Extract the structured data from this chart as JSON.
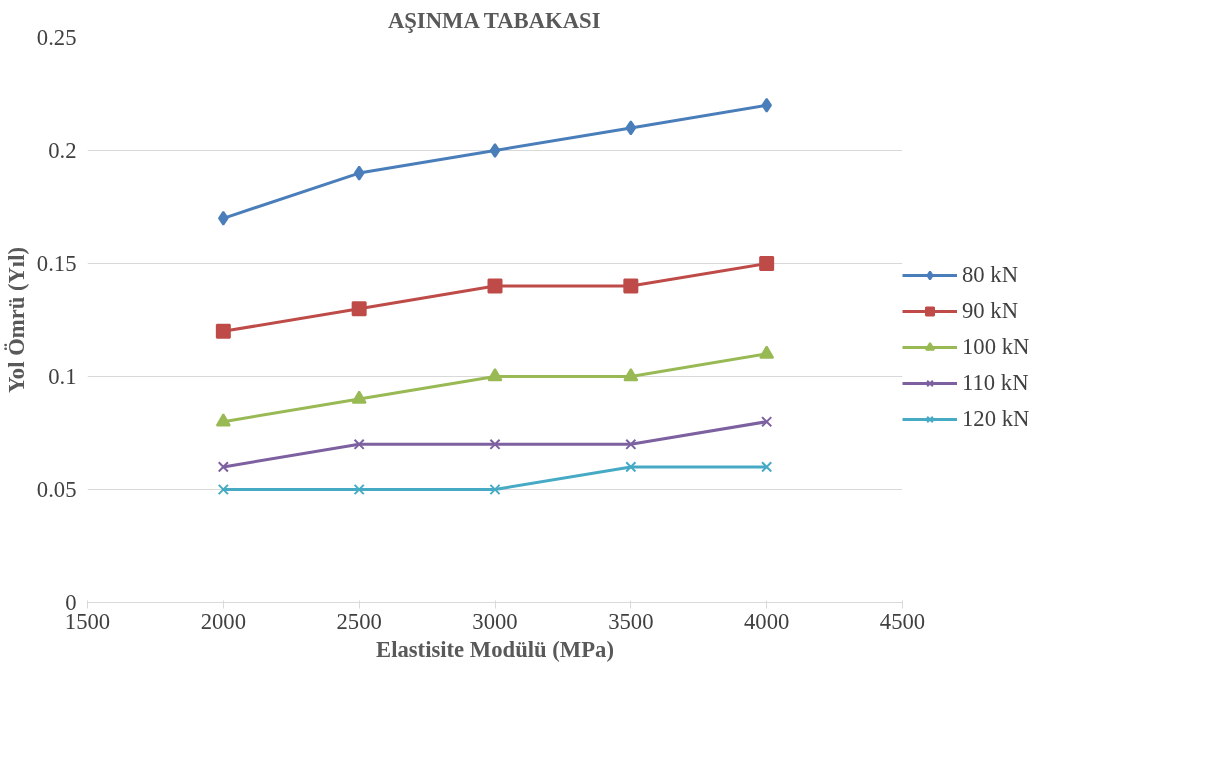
{
  "chart_data": {
    "type": "line",
    "title": "AŞINMA TABAKASI",
    "xlabel": "Elastisite Modülü (MPa)",
    "ylabel": "Yol Ömrü (Yıl)",
    "x": [
      2000,
      2500,
      3000,
      3500,
      4000
    ],
    "series": [
      {
        "name": "80 kN",
        "color": "#4a7ebb",
        "marker": "diamond",
        "values": [
          0.17,
          0.19,
          0.2,
          0.21,
          0.22
        ]
      },
      {
        "name": "90 kN",
        "color": "#be4b48",
        "marker": "square",
        "values": [
          0.12,
          0.13,
          0.14,
          0.14,
          0.15
        ]
      },
      {
        "name": "100 kN",
        "color": "#98b954",
        "marker": "triangle",
        "values": [
          0.08,
          0.09,
          0.1,
          0.1,
          0.11
        ]
      },
      {
        "name": "110 kN",
        "color": "#7d60a0",
        "marker": "cross",
        "values": [
          0.06,
          0.07,
          0.07,
          0.07,
          0.08
        ]
      },
      {
        "name": "120 kN",
        "color": "#46aac5",
        "marker": "cross",
        "values": [
          0.05,
          0.05,
          0.05,
          0.06,
          0.06
        ]
      }
    ],
    "xlim": [
      1500,
      4500
    ],
    "xticks": [
      1500,
      2000,
      2500,
      3000,
      3500,
      4000,
      4500
    ],
    "ylim": [
      0,
      0.25
    ],
    "yticks": [
      0,
      0.05,
      0.1,
      0.15,
      0.2,
      0.25
    ],
    "grid": "y",
    "legend": "right",
    "line_style": "solid"
  }
}
